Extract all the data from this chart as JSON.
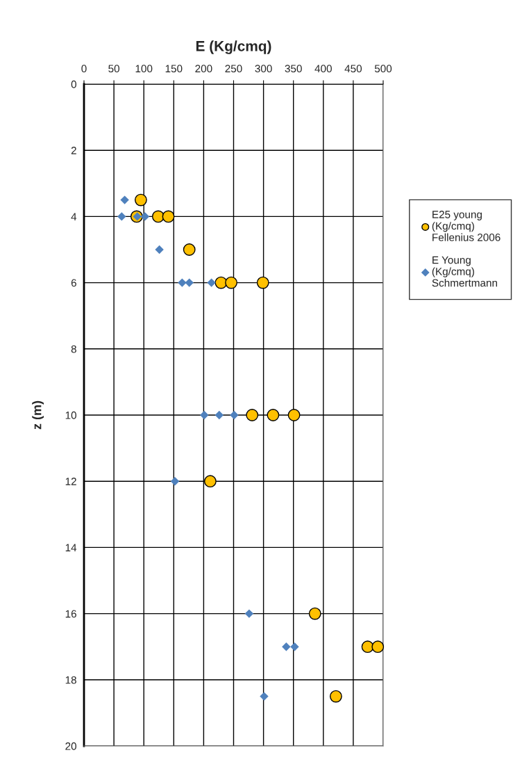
{
  "chart_data": {
    "type": "scatter",
    "xlabel": "E (Kg/cmq)",
    "ylabel": "z (m)",
    "xlim": [
      0,
      500
    ],
    "xticks": [
      0,
      50,
      100,
      150,
      200,
      250,
      300,
      350,
      400,
      450,
      500
    ],
    "ylim": [
      20,
      0
    ],
    "yticks": [
      0,
      2,
      4,
      6,
      8,
      10,
      12,
      14,
      16,
      18,
      20
    ],
    "grid": true,
    "legend": "right",
    "series": [
      {
        "name": "E25 young\n(Kg/cmq)\nFellenius 2006",
        "color": "#ffc000",
        "marker": "circle",
        "x": [
          95,
          88,
          124,
          141,
          176,
          229,
          246,
          299,
          281,
          316,
          351,
          211,
          386,
          474,
          491,
          421
        ],
        "values": [
          3.5,
          4,
          4,
          4,
          5,
          6,
          6,
          6,
          10,
          10,
          10,
          12,
          16,
          17,
          17,
          18.5
        ]
      },
      {
        "name": "E Young\n(Kg/cmq)\nSchmertmann",
        "color": "#4f81bd",
        "marker": "diamond",
        "x": [
          68,
          63,
          89,
          102,
          126,
          164,
          176,
          213,
          201,
          226,
          251,
          152,
          276,
          338,
          352,
          301
        ],
        "values": [
          3.5,
          4,
          4,
          4,
          5,
          6,
          6,
          6,
          10,
          10,
          10,
          12,
          16,
          17,
          17,
          18.5
        ]
      }
    ]
  }
}
